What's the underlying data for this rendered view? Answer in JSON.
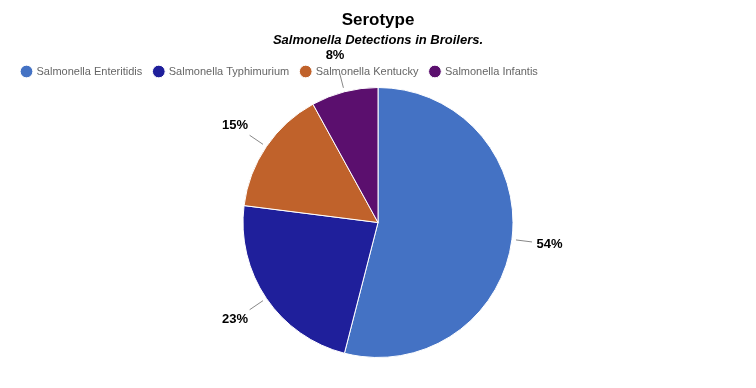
{
  "chart_data": {
    "type": "pie",
    "title": "Serotype",
    "subtitle": "Salmonella Detections in Broilers.",
    "categories": [
      "Salmonella Enteritidis",
      "Salmonella Typhimurium",
      "Salmonella Kentucky",
      "Salmonella Infantis"
    ],
    "values": [
      54,
      23,
      15,
      8
    ],
    "value_labels": [
      "54%",
      "23%",
      "15%",
      "8%"
    ],
    "colors": [
      "#4472C4",
      "#1F1F9B",
      "#C0622B",
      "#5B0F6E"
    ],
    "data_labels": true,
    "legend": "upper left"
  }
}
